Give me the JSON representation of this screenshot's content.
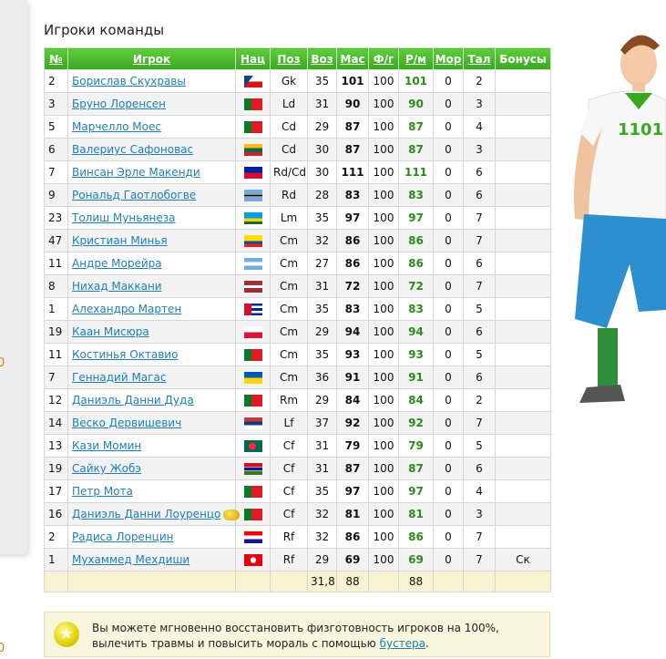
{
  "left_fragments": [
    "0",
    "0"
  ],
  "title": "Игроки команды",
  "headers": [
    "№",
    "Игрок",
    "Нац",
    "Поз",
    "Воз",
    "Мас",
    "Ф/г",
    "Р/м",
    "Мор",
    "Тал",
    "Бонусы"
  ],
  "rows": [
    {
      "no": "2",
      "name": "Борислав Скухравы",
      "flag": "cz",
      "pos": "Gk",
      "age": "35",
      "mas": "101",
      "fg": "100",
      "rm": "101",
      "mor": "0",
      "tal": "2",
      "bonus": ""
    },
    {
      "no": "3",
      "name": "Бруно Лоренсен",
      "flag": "pt",
      "pos": "Ld",
      "age": "31",
      "mas": "90",
      "fg": "100",
      "rm": "90",
      "mor": "0",
      "tal": "3",
      "bonus": ""
    },
    {
      "no": "5",
      "name": "Марчелло Моес",
      "flag": "pt",
      "pos": "Cd",
      "age": "29",
      "mas": "87",
      "fg": "100",
      "rm": "87",
      "mor": "0",
      "tal": "4",
      "bonus": ""
    },
    {
      "no": "6",
      "name": "Валериус Сафоновас",
      "flag": "lt",
      "pos": "Cd",
      "age": "30",
      "mas": "87",
      "fg": "100",
      "rm": "87",
      "mor": "0",
      "tal": "3",
      "bonus": ""
    },
    {
      "no": "7",
      "name": "Винсан Эрле Макенди",
      "flag": "ht",
      "pos": "Rd/Cd",
      "age": "30",
      "mas": "111",
      "fg": "100",
      "rm": "111",
      "mor": "0",
      "tal": "6",
      "bonus": ""
    },
    {
      "no": "9",
      "name": "Рональд Гаотлобогве",
      "flag": "bw",
      "pos": "Rd",
      "age": "28",
      "mas": "83",
      "fg": "100",
      "rm": "83",
      "mor": "0",
      "tal": "6",
      "bonus": ""
    },
    {
      "no": "23",
      "name": "Толиш Муньянеза",
      "flag": "rw",
      "pos": "Lm",
      "age": "35",
      "mas": "97",
      "fg": "100",
      "rm": "97",
      "mor": "0",
      "tal": "7",
      "bonus": ""
    },
    {
      "no": "47",
      "name": "Кристиан Минья",
      "flag": "ec",
      "pos": "Cm",
      "age": "32",
      "mas": "86",
      "fg": "100",
      "rm": "86",
      "mor": "0",
      "tal": "7",
      "bonus": ""
    },
    {
      "no": "11",
      "name": "Андре Морейра",
      "flag": "ar",
      "pos": "Cm",
      "age": "27",
      "mas": "86",
      "fg": "100",
      "rm": "86",
      "mor": "0",
      "tal": "6",
      "bonus": ""
    },
    {
      "no": "8",
      "name": "Нихад Маккани",
      "flag": "lv",
      "pos": "Cm",
      "age": "31",
      "mas": "72",
      "fg": "100",
      "rm": "72",
      "mor": "0",
      "tal": "7",
      "bonus": ""
    },
    {
      "no": "1",
      "name": "Алехандро Мартен",
      "flag": "cu",
      "pos": "Cm",
      "age": "35",
      "mas": "83",
      "fg": "100",
      "rm": "83",
      "mor": "0",
      "tal": "5",
      "bonus": ""
    },
    {
      "no": "19",
      "name": "Каан Мисюра",
      "flag": "pl",
      "pos": "Cm",
      "age": "29",
      "mas": "94",
      "fg": "100",
      "rm": "94",
      "mor": "0",
      "tal": "6",
      "bonus": ""
    },
    {
      "no": "11",
      "name": "Костинья Октавио",
      "flag": "pt",
      "pos": "Cm",
      "age": "35",
      "mas": "93",
      "fg": "100",
      "rm": "93",
      "mor": "0",
      "tal": "5",
      "bonus": ""
    },
    {
      "no": "7",
      "name": "Геннадий Магас",
      "flag": "ua",
      "pos": "Cm",
      "age": "36",
      "mas": "91",
      "fg": "100",
      "rm": "91",
      "mor": "0",
      "tal": "6",
      "bonus": ""
    },
    {
      "no": "12",
      "name": "Даниэль Данни Дуда",
      "flag": "pt",
      "pos": "Rm",
      "age": "29",
      "mas": "84",
      "fg": "100",
      "rm": "84",
      "mor": "0",
      "tal": "2",
      "bonus": ""
    },
    {
      "no": "14",
      "name": "Веско Дервишевич",
      "flag": "rs",
      "pos": "Lf",
      "age": "37",
      "mas": "92",
      "fg": "100",
      "rm": "92",
      "mor": "0",
      "tal": "7",
      "bonus": ""
    },
    {
      "no": "13",
      "name": "Кази Момин",
      "flag": "bd",
      "pos": "Cf",
      "age": "31",
      "mas": "79",
      "fg": "100",
      "rm": "79",
      "mor": "0",
      "tal": "5",
      "bonus": ""
    },
    {
      "no": "19",
      "name": "Сайку Жобэ",
      "flag": "gm",
      "pos": "Cf",
      "age": "31",
      "mas": "87",
      "fg": "100",
      "rm": "87",
      "mor": "0",
      "tal": "6",
      "bonus": ""
    },
    {
      "no": "17",
      "name": "Петр Мота",
      "flag": "pt",
      "pos": "Cf",
      "age": "35",
      "mas": "97",
      "fg": "100",
      "rm": "97",
      "mor": "0",
      "tal": "4",
      "bonus": ""
    },
    {
      "no": "16",
      "name": "Даниэль Данни Лоуренцо",
      "flag": "pt",
      "pos": "Cf",
      "age": "32",
      "mas": "81",
      "fg": "100",
      "rm": "81",
      "mor": "0",
      "tal": "3",
      "bonus": "",
      "icon": "coins-icon"
    },
    {
      "no": "2",
      "name": "Радиса Лоренцин",
      "flag": "hr",
      "pos": "Rf",
      "age": "32",
      "mas": "86",
      "fg": "100",
      "rm": "86",
      "mor": "0",
      "tal": "7",
      "bonus": ""
    },
    {
      "no": "1",
      "name": "Мухаммед Мехдиши",
      "flag": "tn",
      "pos": "Rf",
      "age": "29",
      "mas": "69",
      "fg": "100",
      "rm": "69",
      "mor": "0",
      "tal": "7",
      "bonus": "Ск"
    }
  ],
  "summary": {
    "age": "31,8",
    "mas": "88",
    "rm": "88"
  },
  "notice": {
    "text1": "Вы можете мгновенно восстановить физготовность игроков на 100%, вылечить травмы и повысить мораль с помощью ",
    "link": "бустера",
    "text2": "."
  },
  "colors": {
    "header_green": "#3aa81f",
    "link": "#1e7fb5",
    "rm_green": "#2a8c1a",
    "summary_bg": "#f7f2cf"
  }
}
